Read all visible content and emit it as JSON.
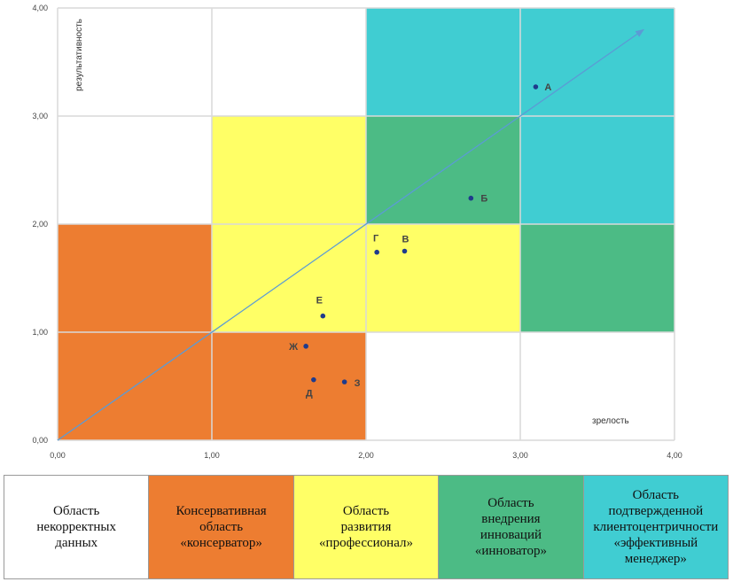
{
  "chart_data": {
    "type": "scatter",
    "xlabel": "зрелость",
    "ylabel": "рeзультативность",
    "xlim": [
      0,
      4
    ],
    "ylim": [
      0,
      4
    ],
    "x_ticks": [
      "0,00",
      "1,00",
      "2,00",
      "3,00",
      "4,00"
    ],
    "y_ticks": [
      "0,00",
      "1,00",
      "2,00",
      "3,00",
      "4,00"
    ],
    "grid": true,
    "regions": [
      {
        "x": [
          0,
          1
        ],
        "y": [
          0,
          2
        ],
        "color": "#ed7d31"
      },
      {
        "x": [
          1,
          2
        ],
        "y": [
          0,
          1
        ],
        "color": "#ed7d31"
      },
      {
        "x": [
          1,
          2
        ],
        "y": [
          1,
          3
        ],
        "color": "#ffff66"
      },
      {
        "x": [
          2,
          3
        ],
        "y": [
          1,
          2
        ],
        "color": "#ffff66"
      },
      {
        "x": [
          2,
          3
        ],
        "y": [
          2,
          3
        ],
        "color": "#4cbb85"
      },
      {
        "x": [
          3,
          4
        ],
        "y": [
          1,
          2
        ],
        "color": "#4cbb85"
      },
      {
        "x": [
          2,
          4
        ],
        "y": [
          3,
          4
        ],
        "color": "#40cdd2"
      },
      {
        "x": [
          3,
          4
        ],
        "y": [
          2,
          3
        ],
        "color": "#40cdd2"
      }
    ],
    "trend_line": {
      "from": [
        0,
        0
      ],
      "to": [
        3.8,
        3.8
      ],
      "color": "#5b9bd5"
    },
    "points": [
      {
        "label": "А",
        "x": 3.1,
        "y": 3.27
      },
      {
        "label": "Б",
        "x": 2.68,
        "y": 2.24
      },
      {
        "label": "В",
        "x": 2.25,
        "y": 1.75
      },
      {
        "label": "Г",
        "x": 2.07,
        "y": 1.74
      },
      {
        "label": "Е",
        "x": 1.72,
        "y": 1.15
      },
      {
        "label": "Ж",
        "x": 1.61,
        "y": 0.87
      },
      {
        "label": "Д",
        "x": 1.66,
        "y": 0.56
      },
      {
        "label": "З",
        "x": 1.86,
        "y": 0.54
      }
    ],
    "point_color": "#1f3b8c"
  },
  "legend": [
    {
      "text": "Область\nнекорректных\nданных",
      "color": "#ffffff"
    },
    {
      "text": "Консервативная\nобласть\n«консерватор»",
      "color": "#ed7d31"
    },
    {
      "text": "Область\nразвития\n«профессионал»",
      "color": "#ffff66"
    },
    {
      "text": "Область\nвнедрения\nинноваций\n«инноватор»",
      "color": "#4cbb85"
    },
    {
      "text": "Область\nподтвержденной\nклиентоцентричности\n«эффективный\nменеджер»",
      "color": "#40cdd2"
    }
  ]
}
